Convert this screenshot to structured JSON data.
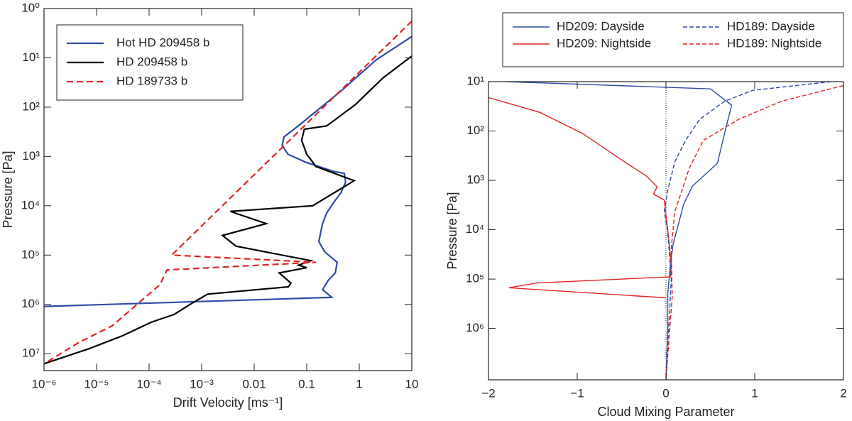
{
  "chart_data": [
    {
      "type": "line",
      "xlabel": "Drift Velocity [ms⁻¹]",
      "ylabel": "Pressure [Pa]",
      "xlog": true,
      "ylog": true,
      "yinvert": true,
      "legend": "upper left",
      "xlim": [
        1e-06,
        10
      ],
      "ylim": [
        1,
        22000000.0
      ],
      "xticks": [
        {
          "value": 1e-06,
          "label": "10⁻⁶"
        },
        {
          "value": 1e-05,
          "label": "10⁻⁵"
        },
        {
          "value": 0.0001,
          "label": "10⁻⁴"
        },
        {
          "value": 0.001,
          "label": "10⁻³"
        },
        0.01,
        0.1,
        1,
        10
      ],
      "yticks": [
        {
          "value": 1,
          "label": "10⁰"
        },
        {
          "value": 10,
          "label": "10¹"
        },
        {
          "value": 100,
          "label": "10²"
        },
        {
          "value": 1000,
          "label": "10³"
        },
        {
          "value": 10000,
          "label": "10⁴"
        },
        {
          "value": 100000,
          "label": "10⁵"
        },
        {
          "value": 1000000,
          "label": "10⁶"
        },
        {
          "value": 10000000,
          "label": "10⁷"
        }
      ],
      "series": [
        {
          "name": "Hot HD 209458 b",
          "color": "#2d4aa8",
          "dash": false,
          "x": [
            10,
            2.1,
            0.45,
            0.069,
            0.037,
            0.034,
            0.044,
            0.094,
            0.32,
            0.52,
            0.55,
            0.45,
            0.32,
            0.24,
            0.2,
            0.17,
            0.22,
            0.38,
            0.35,
            0.26,
            0.2,
            0.3,
            1e-06
          ],
          "values": [
            3.7,
            11,
            47,
            240,
            400,
            600,
            900,
            1300,
            2000,
            2200,
            3300,
            5400,
            8800,
            14000,
            23000,
            53000,
            86000,
            140000,
            230000,
            320000,
            500000,
            720000,
            1100000
          ]
        },
        {
          "name": "HD 209458 b",
          "color": "#000000",
          "dash": false,
          "x": [
            10,
            2.9,
            0.83,
            0.24,
            0.09,
            0.08,
            0.1,
            0.15,
            0.8,
            0.13,
            0.0035,
            0.017,
            0.0025,
            0.0045,
            0.12,
            0.07,
            0.1,
            0.03,
            0.05,
            0.045,
            0.0013,
            0.0006,
            0.0003,
            0.00011,
            3e-05,
            7e-06,
            1e-06
          ],
          "values": [
            9.2,
            25,
            90,
            240,
            280,
            470,
            900,
            1600,
            3100,
            10000,
            13000,
            23000,
            40000,
            66000,
            130000,
            160000,
            180000,
            230000,
            370000,
            440000,
            620000,
            1000000,
            1600000,
            2300000,
            4400000,
            8000000,
            16000000
          ]
        },
        {
          "name": "HD 189733 b",
          "color": "#e02424",
          "dash": true,
          "x": [
            10,
            0.00027,
            0.15,
            0.00022,
            0.00016,
            7e-05,
            2e-05,
            4.5e-06,
            1e-06
          ],
          "values": [
            1.8,
            100000,
            140000,
            200000,
            400000,
            850000,
            2700000,
            6000000,
            16000000
          ]
        }
      ]
    },
    {
      "type": "line",
      "xlabel": "Cloud Mixing Parameter",
      "ylabel": "Pressure [Pa]",
      "xlog": false,
      "ylog": true,
      "yinvert": true,
      "legend": "above",
      "legend_ncol": 2,
      "reference_line_x": 0,
      "xlim": [
        -2,
        2
      ],
      "ylim": [
        10,
        11000000
      ],
      "xticks": [
        {
          "value": -2,
          "label": "−2"
        },
        {
          "value": -1,
          "label": "−1"
        },
        0,
        1,
        2
      ],
      "yticks": [
        {
          "value": 10,
          "label": "10¹"
        },
        {
          "value": 100,
          "label": "10²"
        },
        {
          "value": 1000,
          "label": "10³"
        },
        {
          "value": 10000,
          "label": "10⁴"
        },
        {
          "value": 100000,
          "label": "10⁵"
        },
        {
          "value": 1000000,
          "label": "10⁶"
        }
      ],
      "series": [
        {
          "name": "HD209: Dayside",
          "color": "#2d4aa8",
          "dash": false,
          "x": [
            -1.8,
            0.5,
            0.74,
            0.66,
            0.58,
            0.3,
            0.2,
            0.08,
            0.05,
            0.02,
            0.02,
            0
          ],
          "values": [
            10,
            14,
            30,
            112,
            450,
            1300,
            3000,
            20000,
            50000,
            200000,
            1000000,
            11000000
          ]
        },
        {
          "name": "HD209: Nightside",
          "color": "#e02424",
          "dash": false,
          "x": [
            -2,
            -1.42,
            -0.94,
            -0.46,
            -0.22,
            -0.1,
            -0.14,
            -0.02,
            0.02,
            0.06,
            0.05,
            -1.45,
            -1.77,
            0
          ],
          "values": [
            21,
            42,
            112,
            430,
            820,
            1350,
            1900,
            2500,
            10000,
            50000,
            90000,
            120000,
            150000,
            240000
          ]
        },
        {
          "name": "HD189: Dayside",
          "color": "#2d4aa8",
          "dash": true,
          "x": [
            1.86,
            0.98,
            0.66,
            0.38,
            0.22,
            0.1,
            0.02,
            -0.02,
            0.02,
            0.06,
            0
          ],
          "values": [
            10,
            15,
            25,
            58,
            155,
            420,
            1600,
            4300,
            11000,
            100000,
            11000000
          ]
        },
        {
          "name": "HD189: Nightside",
          "color": "#e02424",
          "dash": true,
          "x": [
            2,
            1.3,
            0.82,
            0.42,
            0.26,
            0.18,
            0.1,
            0.06,
            0.07,
            0
          ],
          "values": [
            12,
            25,
            58,
            155,
            580,
            1600,
            4300,
            23000,
            230000,
            11000000
          ]
        }
      ]
    }
  ]
}
